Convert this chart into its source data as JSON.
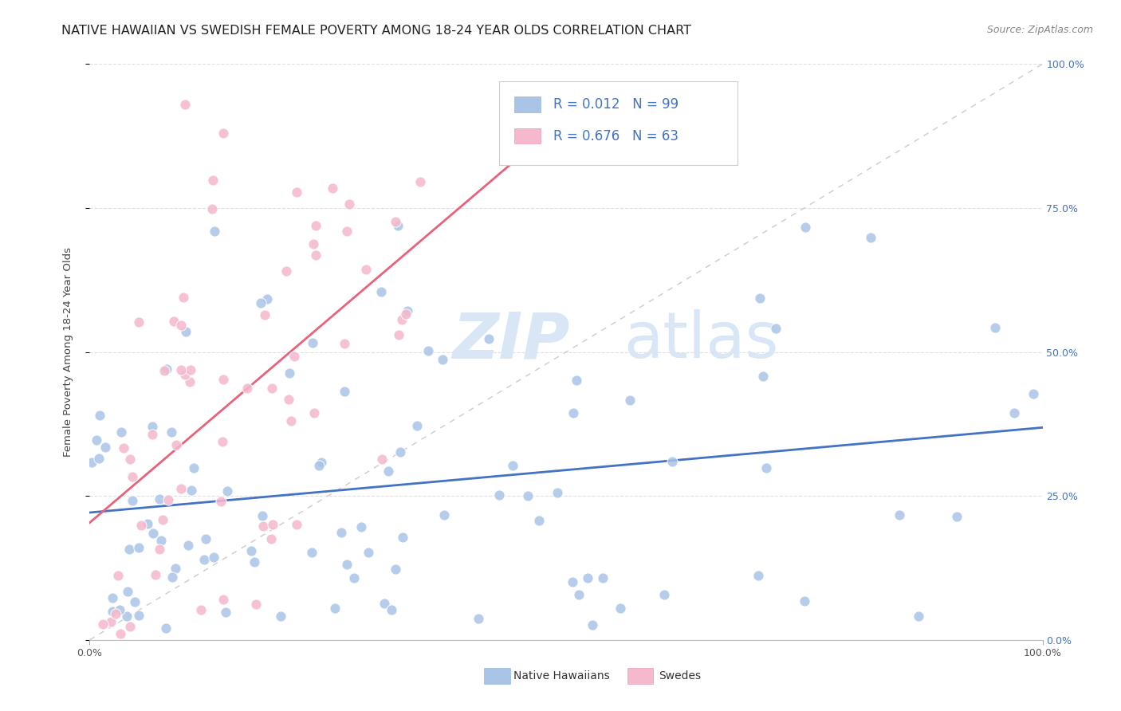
{
  "title": "NATIVE HAWAIIAN VS SWEDISH FEMALE POVERTY AMONG 18-24 YEAR OLDS CORRELATION CHART",
  "source": "Source: ZipAtlas.com",
  "ylabel": "Female Poverty Among 18-24 Year Olds",
  "hawaii_color": "#aac4e8",
  "swede_color": "#f5b8cc",
  "hawaii_line_color": "#4472c4",
  "swede_line_color": "#e8637a",
  "diag_line_color": "#cccccc",
  "watermark_zip": "ZIP",
  "watermark_atlas": "atlas",
  "watermark_color": "#d8e6f5",
  "background_color": "#ffffff",
  "title_fontsize": 11.5,
  "source_fontsize": 9,
  "axis_label_fontsize": 9.5,
  "tick_fontsize": 9,
  "legend_fontsize": 12,
  "right_tick_color": "#4472c4",
  "legend_text_color": "#4472c4",
  "legend_r_color": "#333333"
}
